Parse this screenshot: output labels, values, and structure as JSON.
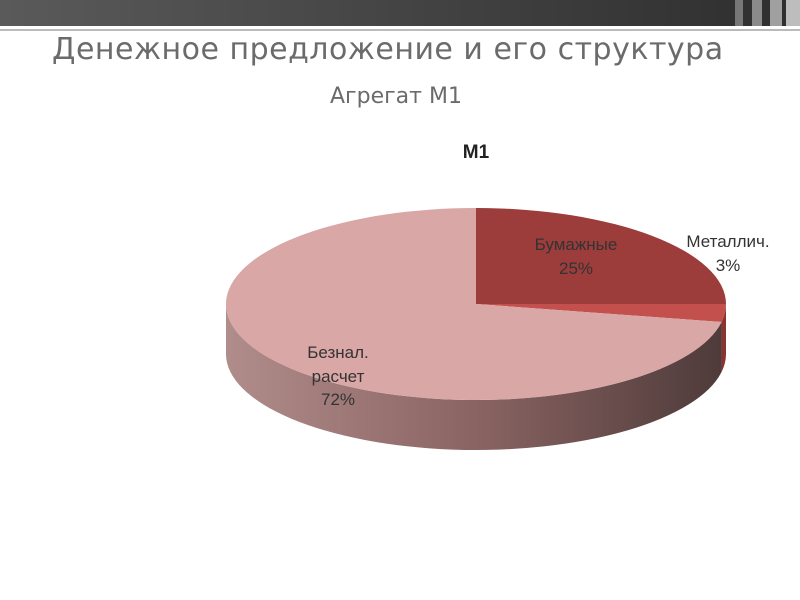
{
  "slide": {
    "title": "Денежное предложение и его структура",
    "subtitle": "Агрегат М1"
  },
  "chart_data": {
    "type": "pie",
    "title": "М1",
    "categories": [
      "Бумажные",
      "Металлич.",
      "Безнал. расчет"
    ],
    "values": [
      25,
      3,
      72
    ],
    "value_labels": [
      "25%",
      "3%",
      "72%"
    ],
    "colors": [
      "#9c3c3b",
      "#c4504d",
      "#d8a7a6"
    ]
  }
}
